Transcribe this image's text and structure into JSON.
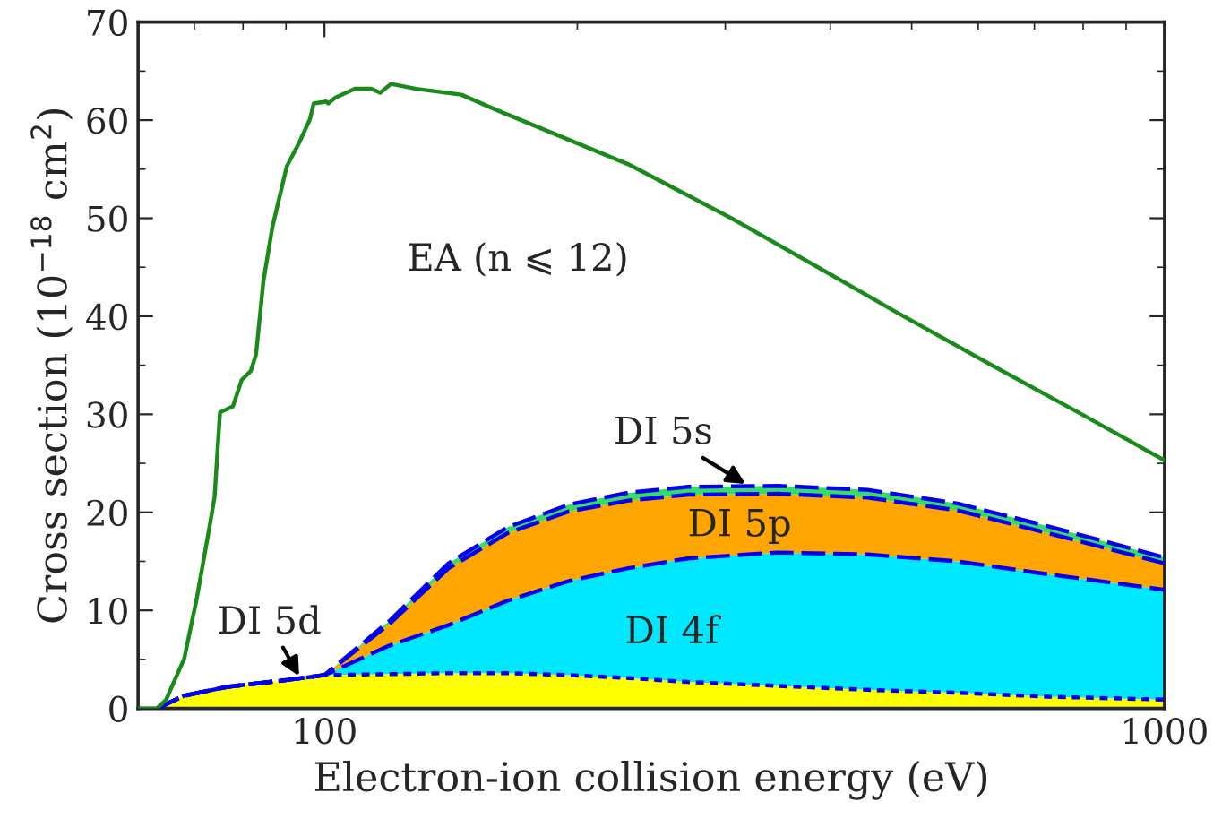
{
  "chart_data": {
    "type": "area",
    "stacked": true,
    "xlabel": "Electron-ion collision energy (eV)",
    "ylabel": "Cross section (10$^{−18}$ cm$^{2}$)",
    "log": "x",
    "xlim": [
      60,
      1000
    ],
    "xticks": [
      100,
      1000
    ],
    "ylim": [
      0,
      70
    ],
    "yticks": [
      0,
      10,
      20,
      30,
      40,
      50,
      60,
      70
    ],
    "grid": false,
    "legend": false,
    "series": [
      {
        "color": "#ffff00",
        "line_style": "dotted",
        "x": [
          63.2,
          68.1,
          76.6,
          90.2,
          100,
          119.4,
          140.5,
          165.3,
          195.5,
          230,
          270.7,
          346.5,
          443,
          567,
          725,
          1000
        ],
        "values": [
          0,
          1.3,
          2.2,
          2.9,
          3.4,
          3.5,
          3.6,
          3.6,
          3.4,
          3.1,
          2.7,
          2.3,
          1.9,
          1.6,
          1.2,
          0.9
        ]
      },
      {
        "color": "#00e8ff",
        "line_style": "dashed",
        "x": [
          63.2,
          68.1,
          76.6,
          90.2,
          100,
          119.4,
          140.5,
          165.3,
          195.5,
          230,
          270.7,
          346.5,
          443,
          567,
          725,
          1000
        ],
        "values": [
          0,
          0,
          0,
          0,
          0,
          2.9,
          4.9,
          7.4,
          9.6,
          11.2,
          12.6,
          13.6,
          13.8,
          13.4,
          12.5,
          11.2
        ]
      },
      {
        "color": "#ffa500",
        "line_style": "dashed",
        "x": [
          63.2,
          68.1,
          76.6,
          90.2,
          100,
          119.4,
          140.5,
          165.3,
          195.5,
          230,
          270.7,
          346.5,
          443,
          567,
          725,
          1000
        ],
        "values": [
          0,
          0,
          0,
          0,
          0,
          2.2,
          5.8,
          6.9,
          7.1,
          6.9,
          6.5,
          6.0,
          5.8,
          5.2,
          4.2,
          2.7
        ]
      },
      {
        "color": "#33dd66",
        "line_style": "dashed",
        "x": [
          63.2,
          68.1,
          76.6,
          90.2,
          100,
          119.4,
          140.5,
          165.3,
          195.5,
          230,
          270.7,
          346.5,
          443,
          567,
          725,
          1000
        ],
        "values": [
          0,
          0,
          0,
          0,
          0,
          0.3,
          0.5,
          0.6,
          0.7,
          0.8,
          0.8,
          0.8,
          0.8,
          0.7,
          0.7,
          0.6
        ]
      },
      {
        "type": "line",
        "color": "#1a8a1a",
        "line_style": "solid",
        "x": [
          60,
          63.2,
          64.8,
          68.1,
          70.5,
          73.0,
          74.0,
          75.1,
          77.8,
          79.7,
          81.7,
          82.9,
          84.6,
          86.7,
          90.2,
          93.3,
          96.1,
          97.1,
          100.5,
          101,
          103,
          108.7,
          113.7,
          116.5,
          120,
          128.6,
          145.5,
          160.6,
          230,
          305,
          396,
          482,
          617,
          789,
          1000
        ],
        "values": [
          0,
          0,
          0.9,
          5.1,
          11.3,
          18.6,
          21.6,
          30.2,
          30.8,
          33.5,
          34.4,
          36.1,
          43.6,
          49.1,
          55.3,
          57.7,
          60.1,
          61.7,
          61.9,
          61.7,
          62.3,
          63.2,
          63.2,
          62.8,
          63.7,
          63.2,
          62.6,
          61.0,
          55.5,
          50.0,
          44.5,
          40.3,
          35.2,
          30.2,
          25.3
        ]
      }
    ],
    "annotations": [
      "EA (n ⩽ 12)",
      {
        "text": "DI 5s",
        "x": 317,
        "y": 22.9
      },
      "DI 5p",
      "DI 4f",
      {
        "text": "DI 5d",
        "x": 93.3,
        "y": 3.3
      }
    ]
  }
}
